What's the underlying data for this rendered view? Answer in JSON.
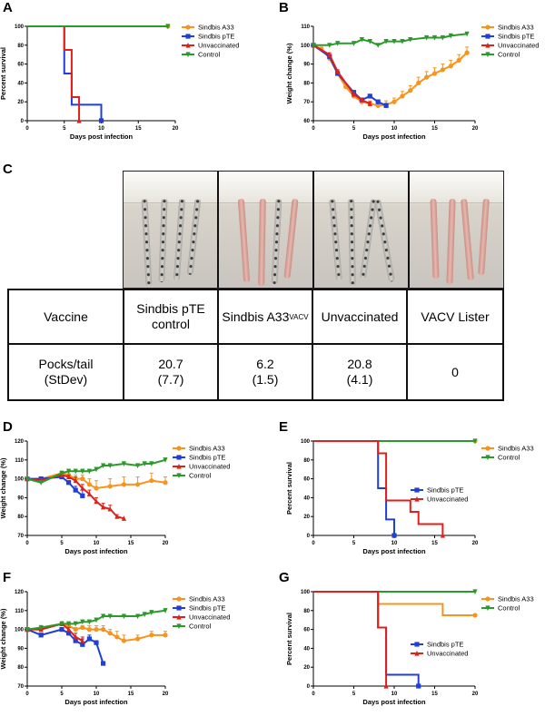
{
  "panels": {
    "A": "A",
    "B": "B",
    "C": "C",
    "D": "D",
    "E": "E",
    "F": "F",
    "G": "G"
  },
  "colors": {
    "sindbis_a33": "#f7941d",
    "sindbis_pte": "#1f3fd6",
    "unvaccinated": "#e0201b",
    "control": "#2a9a2a"
  },
  "table": {
    "header_vaccine": "Vaccine",
    "col1": "Sindbis pTE control",
    "col2_main": "Sindbis A33",
    "col2_sup": "VACV",
    "col3": "Unvaccinated",
    "col4": "VACV Lister",
    "row_label_line1": "Pocks/tail",
    "row_label_line2": "(StDev)",
    "pte_value": "20.7",
    "pte_sd": "(7.7)",
    "a33_value": "6.2",
    "a33_sd": "(1.5)",
    "unvacc_value": "20.8",
    "unvacc_sd": "(4.1)",
    "lister_value": "0"
  },
  "chart_data": [
    {
      "id": "A",
      "type": "line",
      "step": true,
      "xlabel": "Days post infection",
      "ylabel": "Percent survival",
      "xlim": [
        0,
        20
      ],
      "ylim": [
        0,
        100
      ],
      "xticks": [
        0,
        5,
        10,
        15,
        20
      ],
      "yticks": [
        0,
        20,
        40,
        60,
        80,
        100
      ],
      "legend": [
        "Sindbis A33",
        "Sindbis pTE",
        "Unvaccinated",
        "Control"
      ],
      "series": [
        {
          "name": "Sindbis A33",
          "color": "#f7941d",
          "marker": "circle",
          "x": [
            0,
            19
          ],
          "y": [
            100,
            100
          ]
        },
        {
          "name": "Sindbis pTE",
          "color": "#1f3fd6",
          "marker": "square",
          "x": [
            0,
            5,
            6,
            7,
            10
          ],
          "y": [
            100,
            50,
            17,
            17,
            0
          ]
        },
        {
          "name": "Unvaccinated",
          "color": "#e0201b",
          "marker": "triangle",
          "x": [
            0,
            5,
            6,
            7
          ],
          "y": [
            100,
            75,
            25,
            0
          ]
        },
        {
          "name": "Control",
          "color": "#2a9a2a",
          "marker": "tri-down",
          "x": [
            0,
            19
          ],
          "y": [
            100,
            100
          ]
        }
      ]
    },
    {
      "id": "B",
      "type": "line",
      "xlabel": "Days post infection",
      "ylabel": "Weight change (%)",
      "xlim": [
        0,
        20
      ],
      "ylim": [
        60,
        110
      ],
      "xticks": [
        0,
        5,
        10,
        15,
        20
      ],
      "yticks": [
        60,
        70,
        80,
        90,
        100,
        110
      ],
      "legend": [
        "Sindbis A33",
        "Sindbis pTE",
        "Unvaccinated",
        "Control"
      ],
      "series": [
        {
          "name": "Sindbis A33",
          "color": "#f7941d",
          "marker": "circle",
          "x": [
            0,
            1,
            2,
            3,
            4,
            5,
            6,
            7,
            8,
            9,
            10,
            11,
            12,
            13,
            14,
            15,
            16,
            17,
            18,
            19
          ],
          "y": [
            100,
            98,
            93,
            85,
            78,
            73,
            70,
            69,
            68,
            68.5,
            70,
            73,
            76,
            80,
            83,
            85,
            87,
            89,
            92,
            96
          ],
          "err": [
            0,
            1,
            1,
            1.5,
            1.5,
            1.5,
            1.5,
            1.5,
            2,
            2,
            2,
            2.5,
            2.5,
            3,
            3,
            3,
            3,
            3,
            3,
            3
          ]
        },
        {
          "name": "Sindbis pTE",
          "color": "#1f3fd6",
          "marker": "square",
          "x": [
            0,
            2,
            3,
            5,
            6,
            7,
            8,
            9
          ],
          "y": [
            100,
            94,
            85,
            75,
            71,
            73,
            70,
            68
          ],
          "err": [
            0,
            1,
            1,
            1,
            1,
            1,
            1,
            1
          ]
        },
        {
          "name": "Unvaccinated",
          "color": "#e0201b",
          "marker": "triangle",
          "x": [
            0,
            2,
            3,
            5,
            6,
            7
          ],
          "y": [
            100,
            95,
            86,
            74,
            71,
            69
          ],
          "err": [
            0,
            1,
            1,
            1,
            1,
            1
          ]
        },
        {
          "name": "Control",
          "color": "#2a9a2a",
          "marker": "tri-down",
          "x": [
            0,
            2,
            3,
            5,
            6,
            7,
            8,
            9,
            10,
            11,
            12,
            14,
            15,
            16,
            17,
            19
          ],
          "y": [
            100,
            100,
            101,
            101,
            103,
            102,
            100,
            102,
            102,
            102,
            103,
            104,
            104,
            104,
            105,
            106
          ],
          "err": [
            0,
            0.5,
            0.5,
            0.5,
            0.5,
            0.5,
            0.5,
            0.5,
            0.5,
            0.5,
            0.5,
            0.5,
            0.5,
            0.5,
            0.5,
            0.5
          ]
        }
      ]
    },
    {
      "id": "D",
      "type": "line",
      "xlabel": "Days post infection",
      "ylabel": "Weight change (%)",
      "xlim": [
        0,
        20
      ],
      "ylim": [
        70,
        120
      ],
      "xticks": [
        0,
        5,
        10,
        15,
        20
      ],
      "yticks": [
        70,
        80,
        90,
        100,
        110,
        120
      ],
      "legend": [
        "Sindbis A33",
        "Sindbis pTE",
        "Unvaccinated",
        "Control"
      ],
      "series": [
        {
          "name": "Sindbis A33",
          "color": "#f7941d",
          "marker": "circle",
          "x": [
            0,
            2,
            5,
            6,
            7,
            8,
            9,
            10,
            12,
            14,
            16,
            18,
            20
          ],
          "y": [
            100,
            100,
            103,
            102,
            100,
            100,
            97,
            95,
            96,
            97,
            97,
            99,
            98
          ],
          "err": [
            0,
            1,
            1,
            2,
            2,
            2,
            3,
            4,
            4,
            4,
            4,
            4,
            3
          ]
        },
        {
          "name": "Sindbis pTE",
          "color": "#1f3fd6",
          "marker": "square",
          "x": [
            0,
            2,
            5,
            6,
            7,
            8
          ],
          "y": [
            100,
            100,
            101,
            98,
            94,
            91
          ],
          "err": [
            0,
            1,
            1,
            1,
            2,
            3
          ]
        },
        {
          "name": "Unvaccinated",
          "color": "#e0201b",
          "marker": "triangle",
          "x": [
            0,
            2,
            5,
            6,
            7,
            8,
            9,
            10,
            11,
            12,
            13,
            14
          ],
          "y": [
            100,
            99,
            102,
            101,
            99,
            95,
            92,
            88,
            85,
            84,
            80,
            79
          ],
          "err": [
            0,
            1,
            1,
            1,
            2,
            2,
            2,
            2,
            2,
            2,
            1,
            0
          ]
        },
        {
          "name": "Control",
          "color": "#2a9a2a",
          "marker": "tri-down",
          "x": [
            0,
            2,
            5,
            6,
            7,
            8,
            9,
            10,
            11,
            12,
            14,
            16,
            17,
            18,
            20
          ],
          "y": [
            100,
            98,
            103,
            104,
            104,
            104,
            104,
            105,
            107,
            107,
            108,
            107,
            108,
            108,
            110
          ],
          "err": [
            0,
            1,
            1,
            1,
            1,
            1,
            1,
            1,
            1,
            1,
            1,
            1,
            1,
            1,
            1
          ]
        }
      ]
    },
    {
      "id": "E",
      "type": "line",
      "step": true,
      "xlabel": "Days post infection",
      "ylabel": "Percent survival",
      "xlim": [
        0,
        20
      ],
      "ylim": [
        0,
        100
      ],
      "xticks": [
        0,
        5,
        10,
        15,
        20
      ],
      "yticks": [
        0,
        20,
        40,
        60,
        80,
        100
      ],
      "legend": [
        "Sindbis A33",
        "Control"
      ],
      "legend2": [
        "Sindbis pTE",
        "Unvaccinated"
      ],
      "series": [
        {
          "name": "Sindbis A33",
          "color": "#f7941d",
          "marker": "circle",
          "x": [
            0,
            20
          ],
          "y": [
            100,
            100
          ]
        },
        {
          "name": "Control",
          "color": "#2a9a2a",
          "marker": "tri-down",
          "x": [
            0,
            20
          ],
          "y": [
            100,
            100
          ]
        },
        {
          "name": "Sindbis pTE",
          "color": "#1f3fd6",
          "marker": "square",
          "x": [
            0,
            8,
            9,
            10
          ],
          "y": [
            100,
            50,
            17,
            0
          ]
        },
        {
          "name": "Unvaccinated",
          "color": "#e0201b",
          "marker": "triangle",
          "x": [
            0,
            8,
            9,
            11,
            12,
            13,
            16
          ],
          "y": [
            100,
            87,
            37,
            37,
            25,
            12,
            0
          ]
        }
      ]
    },
    {
      "id": "F",
      "type": "line",
      "xlabel": "Days post infection",
      "ylabel": "Weight change (%)",
      "xlim": [
        0,
        20
      ],
      "ylim": [
        70,
        120
      ],
      "xticks": [
        0,
        5,
        10,
        15,
        20
      ],
      "yticks": [
        70,
        80,
        90,
        100,
        110,
        120
      ],
      "legend": [
        "Sindbis A33",
        "Sindbis pTE",
        "Unvaccinated",
        "Control"
      ],
      "series": [
        {
          "name": "Sindbis A33",
          "color": "#f7941d",
          "marker": "circle",
          "x": [
            0,
            2,
            5,
            6,
            7,
            8,
            9,
            10,
            11,
            12,
            13,
            14,
            16,
            18,
            20
          ],
          "y": [
            100,
            100,
            103,
            102,
            100,
            101,
            100,
            100,
            100,
            98,
            96,
            94,
            95,
            97,
            97
          ],
          "err": [
            0,
            1,
            1,
            1,
            1,
            1,
            2,
            2,
            2,
            2,
            3,
            3,
            2,
            2,
            2
          ]
        },
        {
          "name": "Sindbis pTE",
          "color": "#1f3fd6",
          "marker": "square",
          "x": [
            0,
            2,
            5,
            6,
            7,
            8,
            9,
            10,
            11
          ],
          "y": [
            100,
            97,
            100,
            98,
            94,
            92,
            95,
            93,
            82
          ],
          "err": [
            0,
            1,
            1,
            1,
            2,
            3,
            2,
            1,
            0
          ]
        },
        {
          "name": "Unvaccinated",
          "color": "#e0201b",
          "marker": "triangle",
          "x": [
            0,
            2,
            5,
            6,
            7,
            8
          ],
          "y": [
            100,
            100,
            103,
            100,
            96,
            94
          ],
          "err": [
            0,
            1,
            1,
            1,
            2,
            2
          ]
        },
        {
          "name": "Control",
          "color": "#2a9a2a",
          "marker": "tri-down",
          "x": [
            0,
            2,
            5,
            6,
            7,
            8,
            9,
            10,
            11,
            12,
            14,
            16,
            17,
            18,
            20
          ],
          "y": [
            100,
            101,
            103,
            103,
            103,
            104,
            104,
            105,
            107,
            107,
            107,
            107,
            108,
            109,
            110
          ],
          "err": [
            0,
            1,
            1,
            1,
            1,
            1,
            1,
            1,
            1,
            1,
            1,
            1,
            1,
            1,
            1
          ]
        }
      ]
    },
    {
      "id": "G",
      "type": "line",
      "step": true,
      "xlabel": "Days post infection",
      "ylabel": "Percent survival",
      "xlim": [
        0,
        20
      ],
      "ylim": [
        0,
        100
      ],
      "xticks": [
        0,
        5,
        10,
        15,
        20
      ],
      "yticks": [
        0,
        20,
        40,
        60,
        80,
        100
      ],
      "legend": [
        "Sindbis A33",
        "Control"
      ],
      "legend2": [
        "Sindbis pTE",
        "Unvaccinated"
      ],
      "series": [
        {
          "name": "Sindbis A33",
          "color": "#f7941d",
          "marker": "circle",
          "x": [
            0,
            8,
            16,
            20
          ],
          "y": [
            100,
            87,
            75,
            75
          ]
        },
        {
          "name": "Control",
          "color": "#2a9a2a",
          "marker": "tri-down",
          "x": [
            0,
            20
          ],
          "y": [
            100,
            100
          ]
        },
        {
          "name": "Sindbis pTE",
          "color": "#1f3fd6",
          "marker": "square",
          "x": [
            0,
            8,
            9,
            13
          ],
          "y": [
            100,
            62,
            12,
            0
          ]
        },
        {
          "name": "Unvaccinated",
          "color": "#e0201b",
          "marker": "triangle",
          "x": [
            0,
            8,
            9
          ],
          "y": [
            100,
            62,
            0
          ]
        }
      ]
    }
  ]
}
